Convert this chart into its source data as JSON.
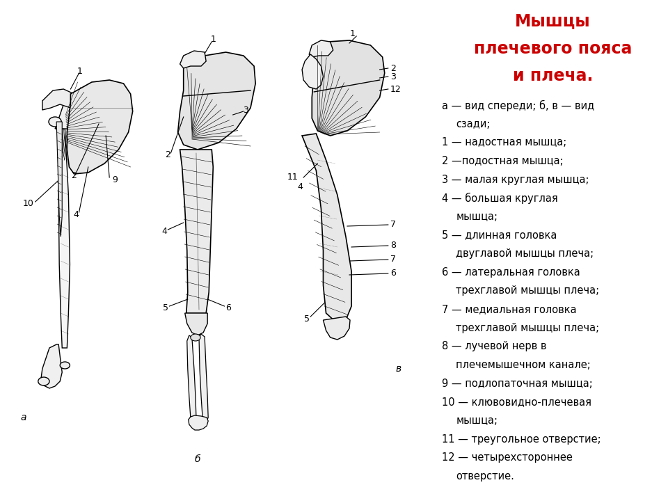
{
  "title_line1": "Мышцы",
  "title_line2": "плечевого пояса",
  "title_line3": "и плеча.",
  "title_color": "#cc0000",
  "title_fontsize": 17,
  "legend_items": [
    {
      "text": "а — вид спереди; б, в — вид",
      "indent": false
    },
    {
      "text": "сзади;",
      "indent": true
    },
    {
      "text": "1 — надостная мышца;",
      "indent": false
    },
    {
      "text": "2 —подостная мышца;",
      "indent": false
    },
    {
      "text": "3 — малая круглая мышца;",
      "indent": false
    },
    {
      "text": "4 — большая круглая",
      "indent": false
    },
    {
      "text": "мышца;",
      "indent": true
    },
    {
      "text": "5 — длинная головка",
      "indent": false
    },
    {
      "text": "двуглавой мышцы плеча;",
      "indent": true
    },
    {
      "text": "6 — латеральная головка",
      "indent": false
    },
    {
      "text": "трехглавой мышцы плеча;",
      "indent": true
    },
    {
      "text": "7 — медиальная головка",
      "indent": false
    },
    {
      "text": "трехглавой мышцы плеча;",
      "indent": true
    },
    {
      "text": "8 — лучевой нерв в",
      "indent": false
    },
    {
      "text": "плечемышечном канале;",
      "indent": true
    },
    {
      "text": "9 — подлопаточная мышца;",
      "indent": false
    },
    {
      "text": "10 — клювовидно-плечевая",
      "indent": false
    },
    {
      "text": "мышца;",
      "indent": true
    },
    {
      "text": "11 — треугольное отверстие;",
      "indent": false
    },
    {
      "text": "12 — четырехстороннее",
      "indent": false
    },
    {
      "text": "отверстие.",
      "indent": true
    }
  ],
  "legend_fontsize": 10.5,
  "background_color": "#ffffff",
  "text_color": "#000000"
}
